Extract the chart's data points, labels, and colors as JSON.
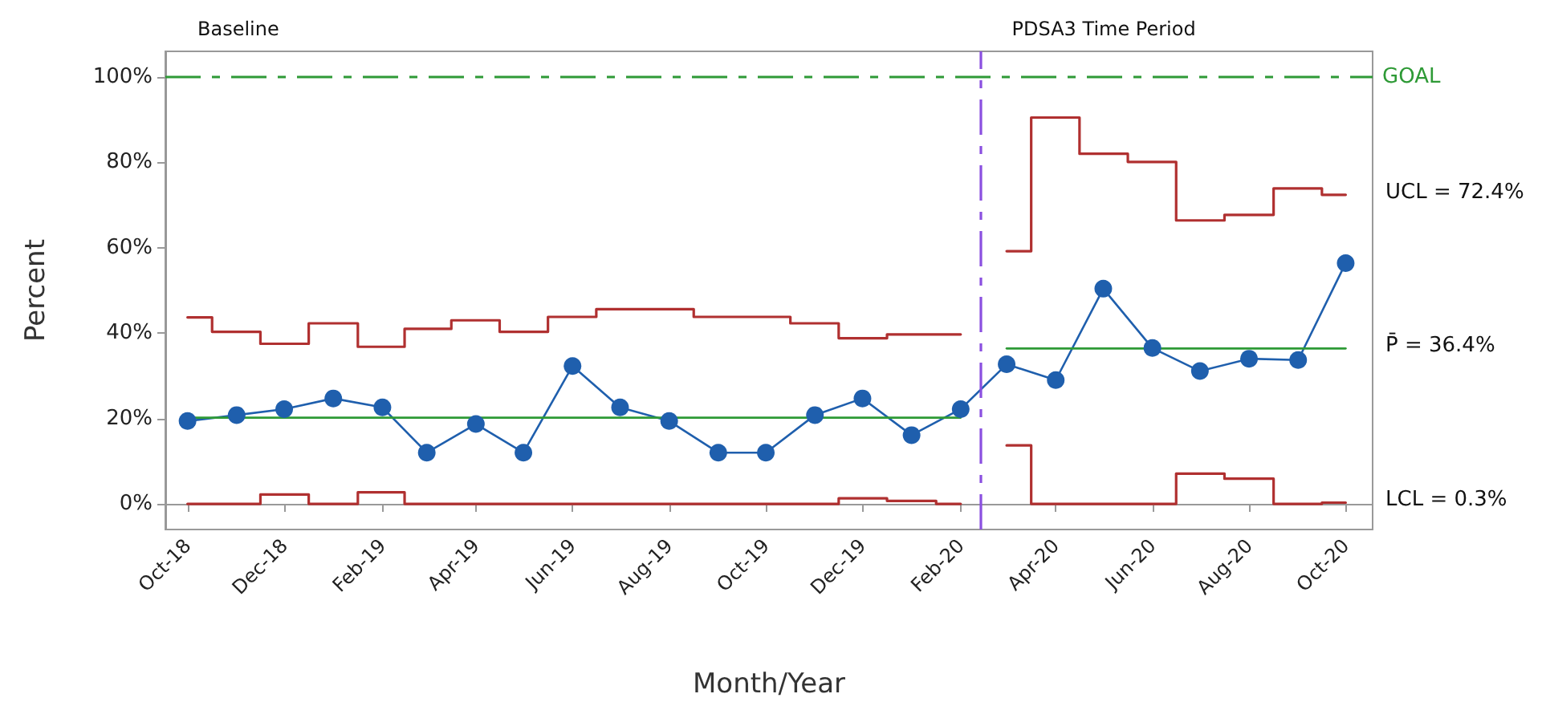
{
  "chart_data": {
    "type": "line",
    "xlabel": "Month/Year",
    "ylabel": "Percent",
    "x": [
      "2018-10",
      "2018-11",
      "2018-12",
      "2019-01",
      "2019-02",
      "2019-03",
      "2019-04",
      "2019-05",
      "2019-06",
      "2019-07",
      "2019-08",
      "2019-09",
      "2019-10",
      "2019-11",
      "2019-12",
      "2020-01",
      "2020-02",
      "2020-03",
      "2020-04",
      "2020-05",
      "2020-06",
      "2020-07",
      "2020-08",
      "2020-09",
      "2020-10"
    ],
    "xlim": [
      "2018-09-17",
      "2020-10-18"
    ],
    "xticks": [
      {
        "value": "2018-10",
        "label": "Oct-18"
      },
      {
        "value": "2018-12",
        "label": "Dec-18"
      },
      {
        "value": "2019-02",
        "label": "Feb-19"
      },
      {
        "value": "2019-04",
        "label": "Apr-19"
      },
      {
        "value": "2019-06",
        "label": "Jun-19"
      },
      {
        "value": "2019-08",
        "label": "Aug-19"
      },
      {
        "value": "2019-10",
        "label": "Oct-19"
      },
      {
        "value": "2019-12",
        "label": "Dec-19"
      },
      {
        "value": "2020-02",
        "label": "Feb-20"
      },
      {
        "value": "2020-04",
        "label": "Apr-20"
      },
      {
        "value": "2020-06",
        "label": "Jun-20"
      },
      {
        "value": "2020-08",
        "label": "Aug-20"
      },
      {
        "value": "2020-10",
        "label": "Oct-20"
      }
    ],
    "ylim": [
      -6,
      106
    ],
    "yticks": [
      {
        "value": 0,
        "label": "0%"
      },
      {
        "value": 20,
        "label": "20%"
      },
      {
        "value": 40,
        "label": "40%"
      },
      {
        "value": 60,
        "label": "60%"
      },
      {
        "value": 80,
        "label": "80%"
      },
      {
        "value": 100,
        "label": "100%"
      }
    ],
    "marker": "circle",
    "line_style": "solid",
    "series": [
      {
        "color": "#1f5fad",
        "values": [
          19.4,
          20.8,
          22.2,
          24.7,
          22.6,
          12.0,
          18.7,
          12.0,
          32.3,
          22.6,
          19.4,
          12.0,
          12.0,
          20.8,
          24.7,
          16.1,
          22.2,
          32.7,
          29.0,
          50.4,
          36.5,
          31.1,
          34.0,
          33.7,
          56.4
        ]
      },
      {
        "type": "step",
        "marker": "none",
        "color": "#b03030",
        "x": [
          "2018-10",
          "2018-11",
          "2018-12",
          "2019-01",
          "2019-02",
          "2019-03",
          "2019-04",
          "2019-05",
          "2019-06",
          "2019-07",
          "2019-08",
          "2019-09",
          "2019-10",
          "2019-11",
          "2019-12",
          "2020-01",
          "2020-02"
        ],
        "values": [
          43.7,
          40.3,
          37.5,
          42.3,
          36.8,
          41.0,
          43.0,
          40.3,
          43.8,
          45.6,
          45.6,
          43.8,
          43.8,
          42.3,
          38.8,
          39.7,
          39.7
        ]
      },
      {
        "type": "step",
        "marker": "none",
        "color": "#b03030",
        "x": [
          "2020-03",
          "2020-04",
          "2020-05",
          "2020-06",
          "2020-07",
          "2020-08",
          "2020-09",
          "2020-10"
        ],
        "values": [
          59.2,
          90.5,
          82.0,
          80.1,
          66.4,
          67.7,
          73.9,
          72.4
        ]
      },
      {
        "type": "step",
        "marker": "none",
        "color": "#b03030",
        "x": [
          "2018-10",
          "2018-11",
          "2018-12",
          "2019-01",
          "2019-02",
          "2019-03",
          "2019-04",
          "2019-05",
          "2019-06",
          "2019-07",
          "2019-08",
          "2019-09",
          "2019-10",
          "2019-11",
          "2019-12",
          "2020-01",
          "2020-02"
        ],
        "values": [
          0,
          0,
          2.2,
          0,
          2.7,
          0,
          0,
          0,
          0,
          0,
          0,
          0,
          0,
          0,
          1.3,
          0.7,
          0
        ]
      },
      {
        "type": "step",
        "marker": "none",
        "color": "#b03030",
        "x": [
          "2020-03",
          "2020-04",
          "2020-05",
          "2020-06",
          "2020-07",
          "2020-08",
          "2020-09",
          "2020-10"
        ],
        "values": [
          13.7,
          0,
          0,
          0,
          7.1,
          5.9,
          0,
          0.3
        ]
      },
      {
        "marker": "none",
        "color": "#2e9a36",
        "x": [
          "2018-10",
          "2020-02"
        ],
        "values": [
          20.2,
          20.2
        ]
      },
      {
        "marker": "none",
        "color": "#2e9a36",
        "x": [
          "2020-03",
          "2020-10"
        ],
        "values": [
          36.4,
          36.4
        ]
      }
    ],
    "ref_lines": [
      {
        "axis": "y",
        "value": 100,
        "label": "GOAL",
        "color": "#2e9a36",
        "line_style": "dashed"
      },
      {
        "axis": "x",
        "value": "2020-02-13",
        "color": "#8a4fe0",
        "line_style": "dashed"
      }
    ],
    "annotations": [
      "Baseline",
      "PDSA3 Time Period",
      {
        "text": "UCL = 72.4%",
        "x": "2020-10",
        "y": 72.4
      },
      {
        "text": "P̄ = 36.4%",
        "x": "2020-10",
        "y": 36.4
      },
      {
        "text": "LCL = 0.3%",
        "x": "2020-10",
        "y": 0.3
      }
    ]
  }
}
